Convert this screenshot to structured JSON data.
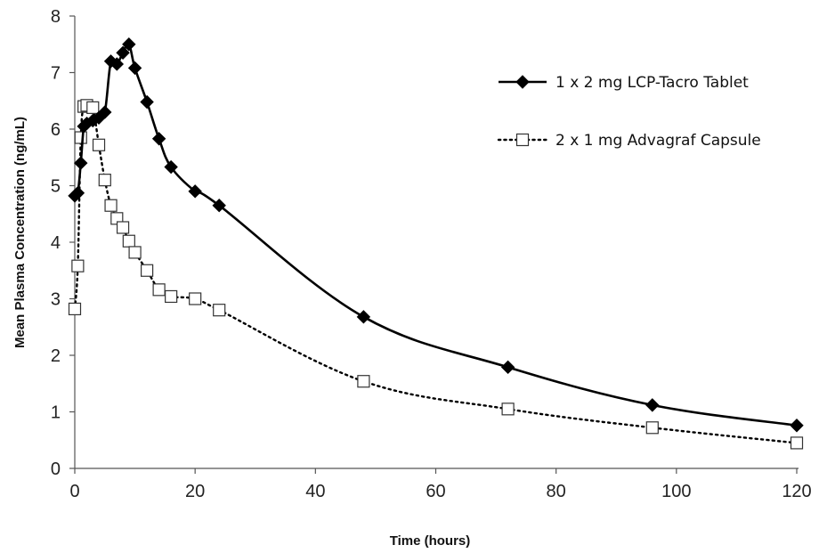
{
  "chart_data": {
    "type": "line",
    "title": "",
    "xlabel": "Time (hours)",
    "ylabel": "Mean Plasma Concentration  (ng/mL)",
    "xlim": [
      0,
      120
    ],
    "ylim": [
      0,
      8
    ],
    "xticks": [
      0,
      20,
      40,
      60,
      80,
      100,
      120
    ],
    "yticks": [
      0,
      1,
      2,
      3,
      4,
      5,
      6,
      7,
      8
    ],
    "grid": false,
    "legend_position": "top-right",
    "series": [
      {
        "name": "1 x 2 mg LCP-Tacro Tablet",
        "line_style": "solid",
        "marker": "filled-diamond",
        "color": "#000000",
        "x": [
          0,
          0.5,
          1,
          1.5,
          2,
          3,
          4,
          5,
          6,
          7,
          8,
          9,
          10,
          12,
          14,
          16,
          20,
          24,
          48,
          72,
          96,
          120
        ],
        "y": [
          4.82,
          4.87,
          5.4,
          6.05,
          6.1,
          6.15,
          6.2,
          6.3,
          7.2,
          7.15,
          7.35,
          7.5,
          7.08,
          6.48,
          5.83,
          5.33,
          4.9,
          4.65,
          2.68,
          1.79,
          1.12,
          0.76
        ]
      },
      {
        "name": "2 x 1 mg Advagraf Capsule",
        "line_style": "dotted",
        "marker": "open-square",
        "color": "#000000",
        "x": [
          0,
          0.5,
          1,
          1.5,
          2,
          3,
          4,
          5,
          6,
          7,
          8,
          9,
          10,
          12,
          14,
          16,
          20,
          24,
          48,
          72,
          96,
          120
        ],
        "y": [
          2.82,
          3.58,
          5.85,
          6.4,
          6.42,
          6.38,
          5.72,
          5.1,
          4.65,
          4.42,
          4.26,
          4.02,
          3.82,
          3.5,
          3.16,
          3.04,
          3.0,
          2.8,
          1.54,
          1.05,
          0.72,
          0.45
        ]
      }
    ]
  }
}
